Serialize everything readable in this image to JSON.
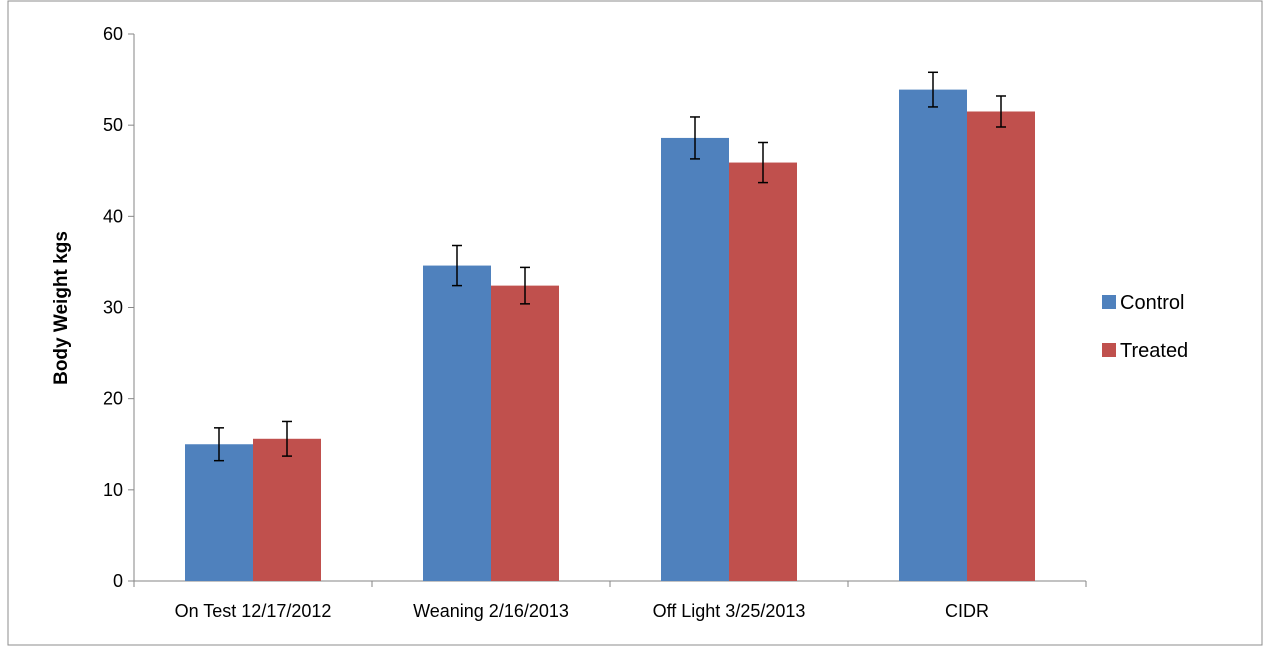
{
  "chart_data": {
    "type": "bar",
    "title": "",
    "xlabel": "",
    "ylabel": "Body Weight kgs",
    "ylim": [
      0,
      60
    ],
    "yticks": [
      0,
      10,
      20,
      30,
      40,
      50,
      60
    ],
    "grid": false,
    "legend_position": "right",
    "categories": [
      "On Test 12/17/2012",
      "Weaning 2/16/2013",
      "Off Light 3/25/2013",
      "CIDR"
    ],
    "series": [
      {
        "name": "Control",
        "color": "#4F81BD",
        "values": [
          15.0,
          34.6,
          48.6,
          53.9
        ],
        "errors": [
          1.8,
          2.2,
          2.3,
          1.9
        ]
      },
      {
        "name": "Treated",
        "color": "#C0504D",
        "values": [
          15.6,
          32.4,
          45.9,
          51.5
        ],
        "errors": [
          1.9,
          2.0,
          2.2,
          1.7
        ]
      }
    ]
  }
}
